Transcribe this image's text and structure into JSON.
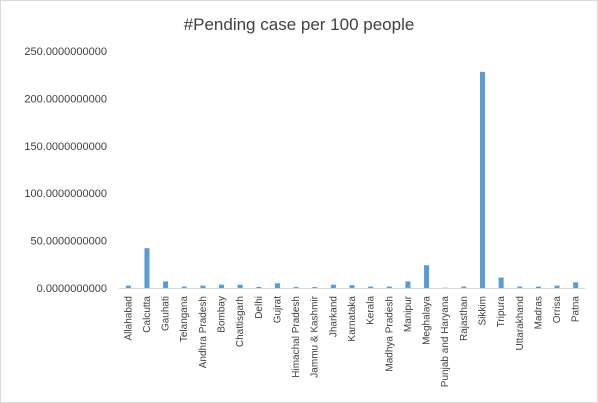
{
  "chart_data": {
    "type": "bar",
    "title": "#Pending case per 100 people",
    "xlabel": "",
    "ylabel": "",
    "ylim": [
      0,
      250
    ],
    "y_ticks": [
      0,
      50,
      100,
      150,
      200,
      250
    ],
    "y_tick_labels": [
      "0.0000000000",
      "50.0000000000",
      "100.0000000000",
      "150.0000000000",
      "200.0000000000",
      "250.0000000000"
    ],
    "grid": false,
    "legend": "none",
    "bar_color": "#5b9bd5",
    "categories": [
      "Allahabad",
      "Calcutta",
      "Gauhati",
      "Telangana",
      "Andhra Pradesh",
      "Bombay",
      "Chattisgarh",
      "Delhi",
      "Gujrat",
      "Himachal Pradesh",
      "Jammu & Kashmir",
      "Jharkand",
      "Karnataka",
      "Kerala",
      "Madhya Pradesh",
      "Manipur",
      "Meghalaya",
      "Punjab and Haryana",
      "Rajasthan",
      "Sikkim",
      "Tripura",
      "Uttarakhand",
      "Madras",
      "Orrisa",
      "Patna"
    ],
    "values": [
      2.5,
      42,
      7,
      1.5,
      2.5,
      3.5,
      3.5,
      1.2,
      5,
      1,
      1,
      3.5,
      3,
      1.5,
      1.5,
      7,
      24,
      0.3,
      1.5,
      228,
      11,
      1.5,
      1.5,
      2.5,
      6
    ]
  }
}
